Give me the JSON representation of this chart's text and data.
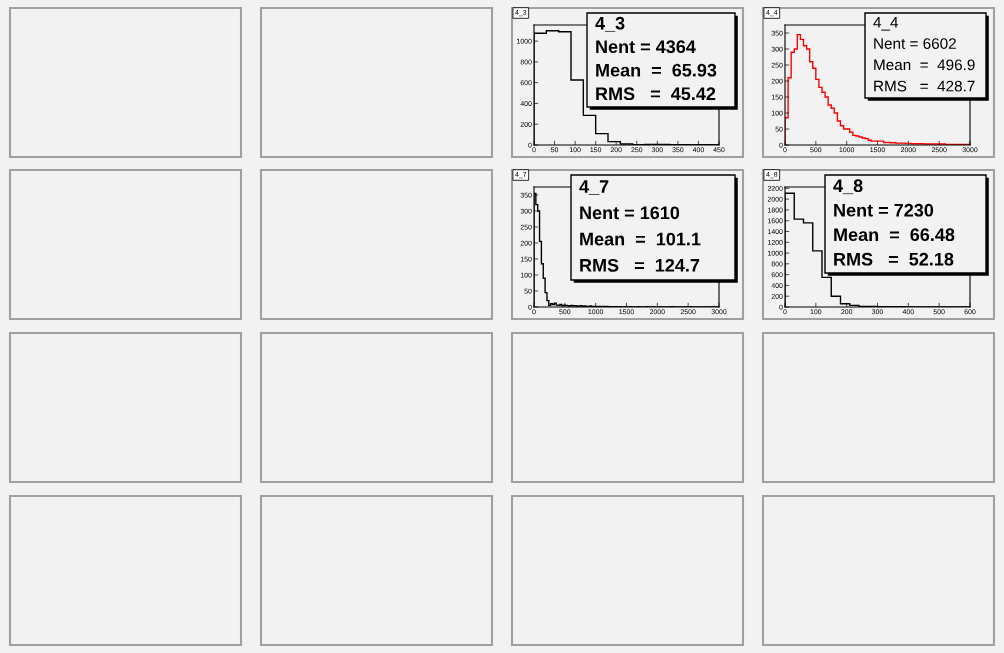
{
  "chart_data": [
    {
      "type": "histogram",
      "title": "4_3",
      "color": "#000000",
      "grid": false,
      "legend": false,
      "bins": [
        0,
        30,
        60,
        90,
        120,
        150,
        180,
        210,
        240,
        270,
        300,
        330,
        360,
        390,
        420,
        450
      ],
      "values": [
        1075,
        1100,
        1090,
        625,
        285,
        110,
        32,
        10,
        2,
        5,
        5,
        4,
        3,
        3,
        2
      ],
      "xlim": [
        0,
        450
      ],
      "xticks": [
        0,
        50,
        100,
        150,
        200,
        250,
        300,
        350,
        400,
        450
      ],
      "ylim": [
        0,
        1155
      ],
      "yticks": [
        0,
        200,
        400,
        600,
        800,
        1000
      ],
      "annotations": [
        "4_3",
        "Nent = 4364",
        "Mean  =  65.93",
        "RMS   =  45.42"
      ]
    },
    {
      "type": "histogram",
      "title": "4_4",
      "color": "#ff0000",
      "grid": false,
      "legend": false,
      "bins": [
        0,
        50,
        100,
        150,
        200,
        250,
        300,
        350,
        400,
        450,
        500,
        550,
        600,
        650,
        700,
        750,
        800,
        850,
        900,
        950,
        1000,
        1050,
        1100,
        1150,
        1200,
        1250,
        1300,
        1350,
        1400,
        1450,
        1500,
        1550,
        1600,
        1650,
        1700,
        1750,
        1800,
        1850,
        1900,
        1950,
        2000,
        2050,
        2100,
        2150,
        2200,
        2250,
        2300,
        2350,
        2400,
        2450,
        2500,
        2550,
        2600,
        2650,
        2700,
        2750,
        2800,
        2850,
        2900,
        2950,
        3000
      ],
      "values": [
        85,
        210,
        290,
        300,
        345,
        330,
        310,
        300,
        260,
        240,
        205,
        180,
        165,
        150,
        125,
        115,
        100,
        75,
        60,
        50,
        50,
        40,
        30,
        28,
        25,
        22,
        20,
        15,
        12,
        12,
        12,
        12,
        8,
        8,
        7,
        7,
        6,
        6,
        6,
        5,
        5,
        4,
        4,
        4,
        4,
        3,
        3,
        3,
        3,
        3,
        3,
        3,
        2,
        2,
        2,
        2,
        2,
        2,
        2,
        2
      ],
      "xlim": [
        0,
        3000
      ],
      "xticks": [
        0,
        500,
        1000,
        1500,
        2000,
        2500,
        3000
      ],
      "ylim": [
        0,
        375
      ],
      "yticks": [
        0,
        50,
        100,
        150,
        200,
        250,
        300,
        350
      ],
      "annotations": [
        "4_4",
        "Nent = 6602",
        "Mean  =  496.9",
        "RMS   =  428.7"
      ]
    },
    {
      "type": "histogram",
      "title": "4_7",
      "color": "#000000",
      "grid": false,
      "legend": false,
      "bins": [
        0,
        30,
        60,
        90,
        120,
        150,
        180,
        210,
        240,
        270,
        300,
        330,
        360,
        390,
        420,
        450,
        480,
        510,
        540,
        570,
        600,
        630,
        660,
        690,
        720,
        750,
        780,
        810,
        840,
        870,
        900,
        930,
        960,
        990,
        1020,
        1050,
        1080,
        1110,
        1140,
        1170,
        1200,
        1230,
        1260,
        1290,
        1320,
        1350,
        1380,
        1410,
        1440,
        1470,
        1500,
        1530,
        1560,
        1590,
        1620,
        1650,
        1680,
        1710,
        1740,
        1770,
        1800,
        1830,
        1860,
        1890,
        1920,
        1950,
        1980,
        2010,
        2040,
        2070,
        2100,
        2130,
        2160,
        2190,
        2220,
        2250,
        2280,
        2310,
        2340,
        2370,
        2400,
        2430,
        2460,
        2490,
        2520,
        2550,
        2580,
        2610,
        2640,
        2670,
        2700,
        2730,
        2760,
        2790,
        2820,
        2850,
        2880,
        2910,
        2940,
        2970,
        3000
      ],
      "values": [
        355,
        320,
        300,
        205,
        135,
        90,
        45,
        20,
        5,
        10,
        8,
        12,
        6,
        5,
        8,
        4,
        6,
        5,
        4,
        3,
        5,
        3,
        4,
        2,
        3,
        4,
        2,
        3,
        2,
        2,
        3,
        2,
        2,
        1,
        2,
        2,
        1,
        2,
        1,
        2,
        1,
        1,
        1,
        0,
        1,
        0,
        1,
        0,
        0,
        1,
        0,
        0,
        1,
        0,
        0,
        0,
        1,
        0,
        0,
        0,
        0,
        1,
        0,
        0,
        0,
        0,
        0,
        1,
        0,
        0,
        0,
        0,
        0,
        0,
        1,
        0,
        0,
        0,
        0,
        0,
        0,
        0,
        0,
        0,
        1,
        0,
        0,
        0,
        0,
        0,
        0,
        0,
        0,
        0,
        0,
        0,
        0,
        0,
        0,
        0
      ],
      "xlim": [
        0,
        3000
      ],
      "xticks": [
        0,
        500,
        1000,
        1500,
        2000,
        2500,
        3000
      ],
      "ylim": [
        0,
        375
      ],
      "yticks": [
        0,
        50,
        100,
        150,
        200,
        250,
        300,
        350
      ],
      "annotations": [
        "4_7",
        "Nent = 1610",
        "Mean  =  101.1",
        "RMS   =  124.7"
      ]
    },
    {
      "type": "histogram",
      "title": "4_8",
      "color": "#000000",
      "grid": false,
      "legend": false,
      "bins": [
        0,
        30,
        60,
        90,
        120,
        150,
        180,
        210,
        240,
        270,
        300,
        330,
        360,
        390,
        420,
        450,
        480,
        510,
        540,
        570,
        600
      ],
      "values": [
        2110,
        1630,
        1560,
        1040,
        550,
        200,
        60,
        30,
        10,
        8,
        5,
        5,
        4,
        3,
        3,
        2,
        2,
        2,
        1,
        1
      ],
      "xlim": [
        0,
        600
      ],
      "xticks": [
        0,
        100,
        200,
        300,
        400,
        500,
        600
      ],
      "ylim": [
        0,
        2225
      ],
      "yticks": [
        0,
        200,
        400,
        600,
        800,
        1000,
        1200,
        1400,
        1600,
        1800,
        2000,
        2200
      ],
      "annotations": [
        "4_8",
        "Nent = 7230",
        "Mean  =  66.48",
        "RMS   =  52.18"
      ]
    }
  ]
}
